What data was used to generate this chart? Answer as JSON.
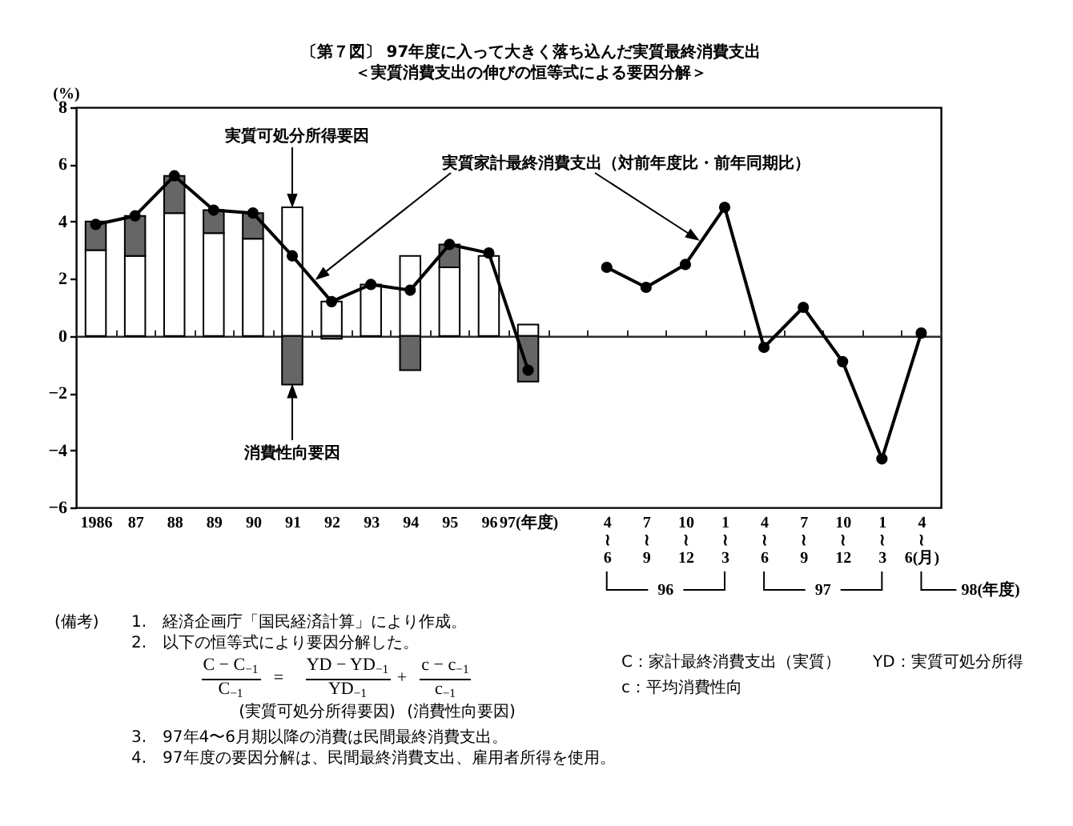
{
  "chart_data": {
    "type": "bar",
    "title": "〔第７図〕 97年度に入って大きく落ち込んだ実質最終消費支出",
    "subtitle": "＜実質消費支出の伸びの恒等式による要因分解＞",
    "ylabel": "(%)",
    "categories": [
      "1986",
      "87",
      "88",
      "89",
      "90",
      "91",
      "92",
      "93",
      "94",
      "95",
      "96",
      "97(年度)",
      null,
      "4\n≀\n6",
      "7\n≀\n9",
      "10\n≀\n12",
      "1\n≀\n3",
      "4\n≀\n6",
      "7\n≀\n9",
      "10\n≀\n12",
      "1\n≀\n3",
      "4\n≀\n6(月)"
    ],
    "stacked": true,
    "series": [
      {
        "name": "実質可処分所得要因",
        "color": "#ffffff",
        "values": [
          3.0,
          2.8,
          4.3,
          3.6,
          3.4,
          4.5,
          1.2,
          1.8,
          2.8,
          2.4,
          2.8,
          0.4,
          null,
          null,
          null,
          null,
          null,
          null,
          null,
          null,
          null,
          null
        ]
      },
      {
        "name": "消費性向要因",
        "color": "#666666",
        "values": [
          1.0,
          1.4,
          1.3,
          0.8,
          0.9,
          -1.7,
          -0.1,
          null,
          -1.2,
          0.8,
          null,
          -1.6,
          null,
          null,
          null,
          null,
          null,
          null,
          null,
          null,
          null,
          null
        ]
      },
      {
        "name": "実質家計最終消費支出（対前年度比・前年同期比）",
        "type": "line",
        "color": "#000000",
        "values": [
          3.9,
          4.2,
          5.6,
          4.4,
          4.3,
          2.8,
          1.2,
          1.8,
          1.6,
          3.2,
          2.9,
          -1.2,
          null,
          2.4,
          1.7,
          2.5,
          4.5,
          -0.4,
          1.0,
          -0.9,
          -4.3,
          0.1
        ]
      }
    ],
    "ylim": [
      -6,
      8
    ],
    "yticks": [
      -6,
      -4,
      -2,
      0,
      2,
      4,
      6,
      8
    ],
    "marker": "circle",
    "annotations": [
      "96",
      "97",
      "98(年度)",
      "(備考)",
      "1.　経済企画庁「国民経済計算」により作成。",
      "2.　以下の恒等式により要因分解した。",
      "C − C$_{−1}$",
      "C$_{−1}$",
      "=",
      "YD − YD$_{−1}$",
      "YD$_{−1}$",
      "+",
      "c − c$_{−1}$",
      "c$_{−1}$",
      "(実質可処分所得要因)",
      "(消費性向要因)",
      "3.　97年4〜6月期以降の消費は民間最終消費支出。",
      "4.　97年度の要因分解は、民間最終消費支出、雇用者所得を使用。",
      "C：家計最終消費支出（実質）",
      "YD：実質可処分所得",
      "c：平均消費性向"
    ]
  }
}
